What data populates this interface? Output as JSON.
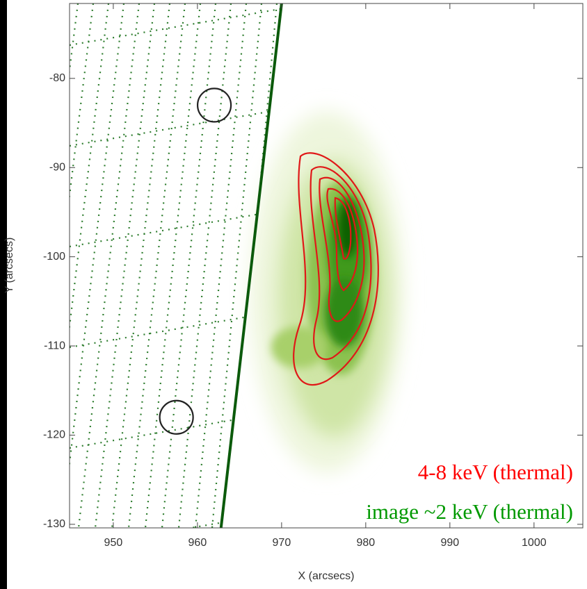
{
  "chart_data": {
    "type": "image",
    "xlabel": "X (arcsecs)",
    "ylabel": "Y (arcsecs)",
    "xlim": [
      944.8,
      1005.8
    ],
    "ylim": [
      -130.4,
      -71.6
    ],
    "xticks": [
      950,
      960,
      970,
      980,
      990,
      1000
    ],
    "yticks": [
      -80,
      -90,
      -100,
      -110,
      -120,
      -130
    ],
    "limb": {
      "x": [
        970,
        962.8
      ],
      "y": [
        -71.6,
        -130.4
      ]
    },
    "markers": {
      "x": [
        962,
        957.5
      ],
      "y": [
        -83,
        -118
      ]
    },
    "annotations": [
      {
        "text": "4-8 keV (thermal)",
        "color": "#ff0000"
      },
      {
        "text": "image ~2 keV (thermal)",
        "color": "#009900"
      }
    ]
  }
}
